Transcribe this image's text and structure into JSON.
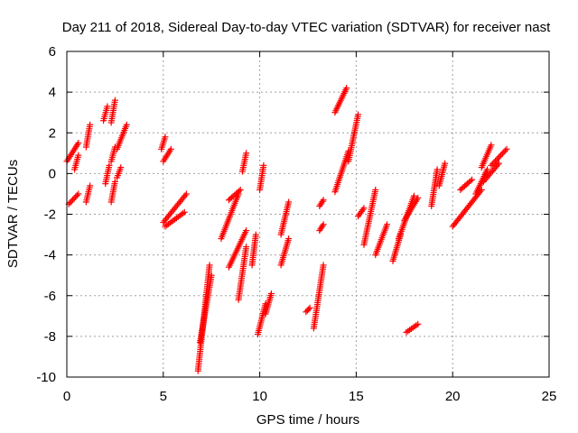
{
  "chart_data": {
    "type": "scatter",
    "title": "Day 211 of 2018, Sidereal Day-to-day VTEC variation (SDTVAR) for receiver nast",
    "xlabel": "GPS time / hours",
    "ylabel": "SDTVAR / TECUs",
    "xlim": [
      0,
      25
    ],
    "ylim": [
      -10,
      6
    ],
    "x_ticks": [
      0,
      5,
      10,
      15,
      20,
      25
    ],
    "y_ticks": [
      -10,
      -8,
      -6,
      -4,
      -2,
      0,
      2,
      4,
      6
    ],
    "grid": true,
    "marker": "plus",
    "color": "#ff0000",
    "segments": [
      {
        "x": [
          0.0,
          0.6
        ],
        "y": [
          0.6,
          1.5
        ]
      },
      {
        "x": [
          0.1,
          0.6
        ],
        "y": [
          -1.5,
          -1.0
        ]
      },
      {
        "x": [
          0.4,
          0.6
        ],
        "y": [
          0.2,
          0.9
        ]
      },
      {
        "x": [
          1.0,
          1.2
        ],
        "y": [
          1.3,
          2.4
        ]
      },
      {
        "x": [
          1.0,
          1.2
        ],
        "y": [
          -1.4,
          -0.6
        ]
      },
      {
        "x": [
          1.9,
          2.1
        ],
        "y": [
          2.6,
          3.3
        ]
      },
      {
        "x": [
          2.0,
          2.2
        ],
        "y": [
          -0.5,
          0.4
        ]
      },
      {
        "x": [
          2.3,
          2.5
        ],
        "y": [
          2.5,
          3.6
        ]
      },
      {
        "x": [
          2.3,
          2.5
        ],
        "y": [
          0.6,
          1.3
        ]
      },
      {
        "x": [
          2.3,
          2.5
        ],
        "y": [
          -1.4,
          -0.4
        ]
      },
      {
        "x": [
          2.6,
          3.1
        ],
        "y": [
          1.2,
          2.4
        ]
      },
      {
        "x": [
          2.6,
          2.8
        ],
        "y": [
          -0.2,
          0.3
        ]
      },
      {
        "x": [
          4.9,
          5.1
        ],
        "y": [
          1.2,
          1.8
        ]
      },
      {
        "x": [
          5.0,
          5.4
        ],
        "y": [
          0.6,
          1.2
        ]
      },
      {
        "x": [
          5.0,
          6.2
        ],
        "y": [
          -2.4,
          -1.0
        ]
      },
      {
        "x": [
          5.1,
          6.1
        ],
        "y": [
          -2.6,
          -1.9
        ]
      },
      {
        "x": [
          6.8,
          7.4
        ],
        "y": [
          -9.7,
          -4.5
        ]
      },
      {
        "x": [
          6.9,
          7.5
        ],
        "y": [
          -8.3,
          -5.0
        ]
      },
      {
        "x": [
          8.0,
          8.9
        ],
        "y": [
          -3.2,
          -1.0
        ]
      },
      {
        "x": [
          8.4,
          9.0
        ],
        "y": [
          -1.3,
          -0.8
        ]
      },
      {
        "x": [
          8.4,
          9.3
        ],
        "y": [
          -4.6,
          -2.8
        ]
      },
      {
        "x": [
          8.9,
          9.3
        ],
        "y": [
          -6.2,
          -3.6
        ]
      },
      {
        "x": [
          9.1,
          9.3
        ],
        "y": [
          0.1,
          1.0
        ]
      },
      {
        "x": [
          9.6,
          9.8
        ],
        "y": [
          -4.5,
          -3.0
        ]
      },
      {
        "x": [
          9.9,
          10.3
        ],
        "y": [
          -7.9,
          -6.4
        ]
      },
      {
        "x": [
          10.0,
          10.2
        ],
        "y": [
          -0.8,
          0.4
        ]
      },
      {
        "x": [
          10.3,
          10.6
        ],
        "y": [
          -6.9,
          -5.9
        ]
      },
      {
        "x": [
          11.1,
          11.5
        ],
        "y": [
          -3.0,
          -1.4
        ]
      },
      {
        "x": [
          11.1,
          11.5
        ],
        "y": [
          -4.5,
          -3.2
        ]
      },
      {
        "x": [
          12.4,
          12.6
        ],
        "y": [
          -6.8,
          -6.6
        ]
      },
      {
        "x": [
          12.8,
          13.3
        ],
        "y": [
          -7.6,
          -4.5
        ]
      },
      {
        "x": [
          13.1,
          13.3
        ],
        "y": [
          -1.6,
          -1.3
        ]
      },
      {
        "x": [
          13.1,
          13.3
        ],
        "y": [
          -2.8,
          -2.5
        ]
      },
      {
        "x": [
          13.9,
          14.5
        ],
        "y": [
          3.0,
          4.2
        ]
      },
      {
        "x": [
          13.9,
          14.6
        ],
        "y": [
          -0.9,
          1.1
        ]
      },
      {
        "x": [
          14.6,
          15.1
        ],
        "y": [
          0.6,
          2.9
        ]
      },
      {
        "x": [
          15.1,
          15.4
        ],
        "y": [
          -2.1,
          -1.7
        ]
      },
      {
        "x": [
          15.4,
          16.0
        ],
        "y": [
          -3.5,
          -0.8
        ]
      },
      {
        "x": [
          16.0,
          16.6
        ],
        "y": [
          -4.0,
          -2.5
        ]
      },
      {
        "x": [
          16.9,
          17.3
        ],
        "y": [
          -4.3,
          -3.0
        ]
      },
      {
        "x": [
          17.2,
          18.0
        ],
        "y": [
          -3.2,
          -1.1
        ]
      },
      {
        "x": [
          17.5,
          18.2
        ],
        "y": [
          -2.3,
          -1.2
        ]
      },
      {
        "x": [
          17.6,
          18.2
        ],
        "y": [
          -7.8,
          -7.4
        ]
      },
      {
        "x": [
          18.9,
          19.2
        ],
        "y": [
          -1.6,
          0.2
        ]
      },
      {
        "x": [
          19.3,
          19.6
        ],
        "y": [
          -0.6,
          0.5
        ]
      },
      {
        "x": [
          20.0,
          21.5
        ],
        "y": [
          -2.6,
          -0.8
        ]
      },
      {
        "x": [
          20.4,
          21.0
        ],
        "y": [
          -0.8,
          -0.3
        ]
      },
      {
        "x": [
          21.2,
          21.8
        ],
        "y": [
          -1.0,
          0.2
        ]
      },
      {
        "x": [
          21.5,
          22.0
        ],
        "y": [
          0.3,
          1.4
        ]
      },
      {
        "x": [
          21.6,
          22.4
        ],
        "y": [
          -0.4,
          0.5
        ]
      },
      {
        "x": [
          22.0,
          22.8
        ],
        "y": [
          0.4,
          1.2
        ]
      }
    ]
  }
}
